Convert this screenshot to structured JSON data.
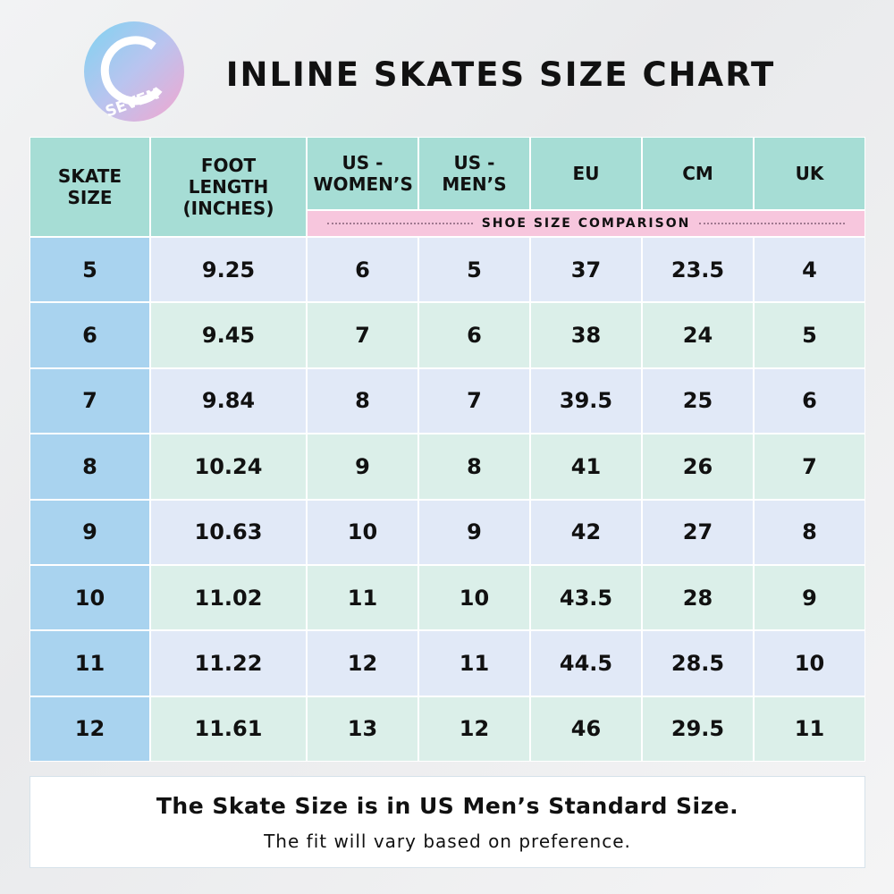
{
  "logo": {
    "text": "SEVEN"
  },
  "header": {
    "title": "INLINE SKATES SIZE CHART"
  },
  "table": {
    "columns": [
      "SKATE SIZE",
      "FOOT LENGTH (INCHES)",
      "US - WOMEN’S",
      "US - MEN’S",
      "EU",
      "CM",
      "UK"
    ],
    "group_label": "SHOE SIZE COMPARISON",
    "rows": [
      [
        "5",
        "9.25",
        "6",
        "5",
        "37",
        "23.5",
        "4"
      ],
      [
        "6",
        "9.45",
        "7",
        "6",
        "38",
        "24",
        "5"
      ],
      [
        "7",
        "9.84",
        "8",
        "7",
        "39.5",
        "25",
        "6"
      ],
      [
        "8",
        "10.24",
        "9",
        "8",
        "41",
        "26",
        "7"
      ],
      [
        "9",
        "10.63",
        "10",
        "9",
        "42",
        "27",
        "8"
      ],
      [
        "10",
        "11.02",
        "11",
        "10",
        "43.5",
        "28",
        "9"
      ],
      [
        "11",
        "11.22",
        "12",
        "11",
        "44.5",
        "28.5",
        "10"
      ],
      [
        "12",
        "11.61",
        "13",
        "12",
        "46",
        "29.5",
        "11"
      ]
    ]
  },
  "footer": {
    "line1": "The Skate Size is in US Men’s Standard Size.",
    "line2": "The fit will vary based on preference."
  }
}
